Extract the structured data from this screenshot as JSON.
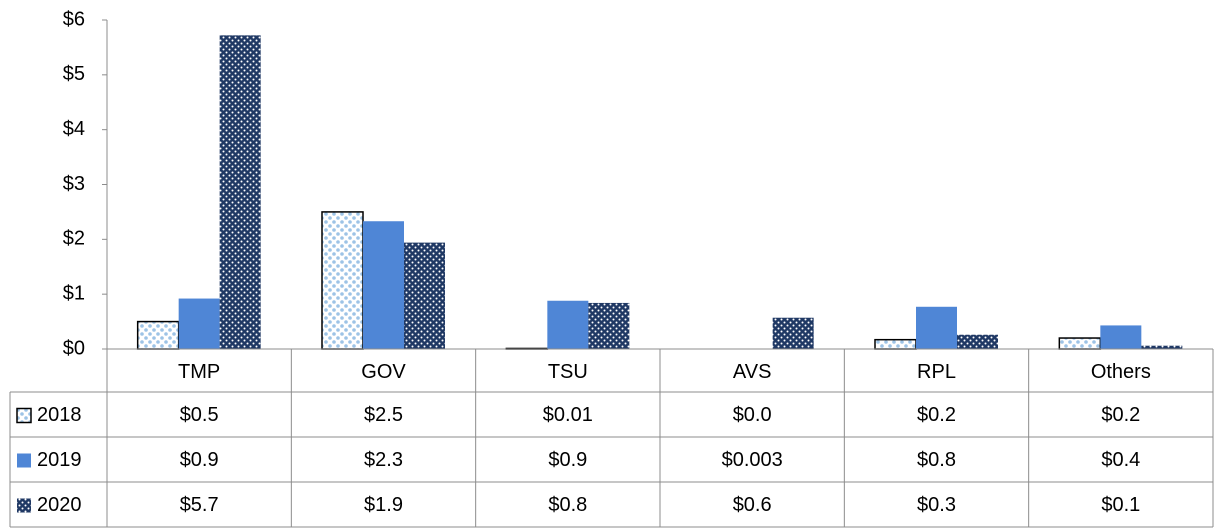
{
  "chart_data": {
    "type": "bar",
    "categories": [
      "TMP",
      "GOV",
      "TSU",
      "AVS",
      "RPL",
      "Others"
    ],
    "series": [
      {
        "name": "2018",
        "color": "#9dc3e6",
        "pattern": "dots",
        "values": [
          0.5,
          2.5,
          0.01,
          0,
          0.17,
          0.2
        ],
        "value_labels": [
          "$0.5",
          "$2.5",
          "$0.01",
          "$0.0",
          "$0.2",
          "$0.2"
        ]
      },
      {
        "name": "2019",
        "color": "#4f86d6",
        "pattern": "solid",
        "values": [
          0.92,
          2.33,
          0.88,
          0.003,
          0.77,
          0.43
        ],
        "value_labels": [
          "$0.9",
          "$2.3",
          "$0.9",
          "$0.003",
          "$0.8",
          "$0.4"
        ]
      },
      {
        "name": "2020",
        "color": "#1f3864",
        "pattern": "checker",
        "values": [
          5.72,
          1.94,
          0.84,
          0.57,
          0.26,
          0.06
        ],
        "value_labels": [
          "$5.7",
          "$1.9",
          "$0.8",
          "$0.6",
          "$0.3",
          "$0.1"
        ]
      }
    ],
    "ylim": [
      0,
      6
    ],
    "yticks": [
      {
        "value": 0,
        "label": "$0"
      },
      {
        "value": 1,
        "label": "$1"
      },
      {
        "value": 2,
        "label": "$2"
      },
      {
        "value": 3,
        "label": "$3"
      },
      {
        "value": 4,
        "label": "$4"
      },
      {
        "value": 5,
        "label": "$5"
      },
      {
        "value": 6,
        "label": "$6"
      }
    ],
    "grid": false,
    "data_table": true
  }
}
